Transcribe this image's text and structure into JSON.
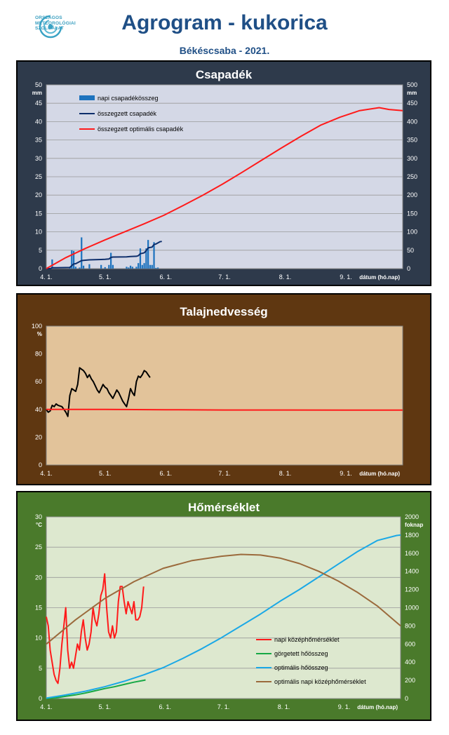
{
  "header": {
    "logo_lines": [
      "ORSZÁGOS",
      "METEOROLÓGIAI",
      "SZOLGÁLAT"
    ],
    "title": "Agrogram - kukorica",
    "subtitle": "Békéscsaba - 2021."
  },
  "colors": {
    "title": "#1f4f86",
    "panel1_bg": "#2e3a4b",
    "panel1_plot": "#d4d8e6",
    "panel2_bg": "#5f3711",
    "panel2_plot": "#e2c39a",
    "panel3_bg": "#4a7a2b",
    "panel3_plot": "#dde8cf"
  },
  "chart_data": [
    {
      "type": "bar",
      "title": "Csapadék",
      "xlabel": "dátum (hó.nap)",
      "x_ticks": [
        "4. 1.",
        "5. 1.",
        "6. 1.",
        "7. 1.",
        "8. 1.",
        "9. 1."
      ],
      "x_tick_days": [
        0,
        30,
        61,
        91,
        122,
        153
      ],
      "x_range_days": [
        0,
        182
      ],
      "y_left": {
        "unit": "mm",
        "range": [
          0,
          50
        ],
        "ticks": [
          0,
          5,
          10,
          15,
          20,
          25,
          30,
          35,
          40,
          45,
          50
        ]
      },
      "y_right": {
        "unit": "mm",
        "range": [
          0,
          500
        ],
        "ticks": [
          0,
          50,
          100,
          150,
          200,
          250,
          300,
          350,
          400,
          450,
          500
        ]
      },
      "grid": true,
      "legend_position": "top-left",
      "series": [
        {
          "name": "napi csapadékösszeg",
          "kind": "bar",
          "axis": "left",
          "color": "#1e73be",
          "points": [
            [
              3,
              2.5
            ],
            [
              12,
              0.5
            ],
            [
              13,
              5.0
            ],
            [
              14,
              4.8
            ],
            [
              15,
              0.5
            ],
            [
              17,
              0.3
            ],
            [
              18,
              8.5
            ],
            [
              19,
              0.8
            ],
            [
              22,
              1.2
            ],
            [
              28,
              1.0
            ],
            [
              30,
              0.4
            ],
            [
              32,
              1.0
            ],
            [
              33,
              4.3
            ],
            [
              34,
              1.0
            ],
            [
              41,
              0.5
            ],
            [
              42,
              0.3
            ],
            [
              43,
              0.8
            ],
            [
              44,
              0.5
            ],
            [
              46,
              0.5
            ],
            [
              47,
              1.5
            ],
            [
              48,
              5.5
            ],
            [
              49,
              1.0
            ],
            [
              50,
              1.5
            ],
            [
              51,
              5.5
            ],
            [
              52,
              7.8
            ],
            [
              53,
              1.0
            ],
            [
              54,
              1.0
            ],
            [
              55,
              7.2
            ],
            [
              56,
              0.2
            ],
            [
              57,
              0.3
            ]
          ]
        },
        {
          "name": "összegzett csapadék",
          "kind": "line",
          "axis": "right",
          "color": "#0d2e6b",
          "points": [
            [
              0,
              0
            ],
            [
              2,
              0
            ],
            [
              3,
              2.5
            ],
            [
              5,
              2.5
            ],
            [
              12,
              3
            ],
            [
              13,
              8
            ],
            [
              14,
              12.8
            ],
            [
              15,
              13.3
            ],
            [
              18,
              21.8
            ],
            [
              19,
              22.6
            ],
            [
              22,
              23.8
            ],
            [
              28,
              24.8
            ],
            [
              30,
              25.2
            ],
            [
              32,
              26.2
            ],
            [
              33,
              30.5
            ],
            [
              34,
              31.5
            ],
            [
              41,
              32
            ],
            [
              43,
              33.1
            ],
            [
              46,
              33.6
            ],
            [
              47,
              35.1
            ],
            [
              48,
              40.6
            ],
            [
              49,
              41.6
            ],
            [
              50,
              43.1
            ],
            [
              51,
              48.6
            ],
            [
              52,
              56.4
            ],
            [
              53,
              57.4
            ],
            [
              54,
              58.4
            ],
            [
              55,
              65.6
            ],
            [
              56,
              67
            ],
            [
              58,
              73
            ],
            [
              59,
              74
            ]
          ]
        },
        {
          "name": "összegzett optimális  csapadék",
          "kind": "line",
          "axis": "right",
          "color": "#ff1a1a",
          "points": [
            [
              0,
              0
            ],
            [
              10,
              30
            ],
            [
              20,
              55
            ],
            [
              30,
              78
            ],
            [
              40,
              100
            ],
            [
              50,
              122
            ],
            [
              60,
              145
            ],
            [
              70,
              172
            ],
            [
              80,
              200
            ],
            [
              90,
              230
            ],
            [
              100,
              262
            ],
            [
              110,
              295
            ],
            [
              120,
              328
            ],
            [
              130,
              360
            ],
            [
              140,
              390
            ],
            [
              150,
              412
            ],
            [
              160,
              430
            ],
            [
              170,
              438
            ],
            [
              175,
              433
            ],
            [
              182,
              430
            ]
          ]
        }
      ]
    },
    {
      "type": "line",
      "title": "Talajnedvesség",
      "xlabel": "dátum (hó.nap)",
      "x_ticks": [
        "4. 1.",
        "5. 1.",
        "6. 1.",
        "7. 1.",
        "8. 1.",
        "9. 1."
      ],
      "x_tick_days": [
        0,
        30,
        61,
        91,
        122,
        153
      ],
      "x_range_days": [
        0,
        182
      ],
      "y": {
        "unit": "%",
        "range": [
          0,
          100
        ],
        "ticks": [
          0,
          20,
          40,
          60,
          80,
          100
        ]
      },
      "grid": false,
      "series": [
        {
          "name": "",
          "color": "#000000",
          "points": [
            [
              0,
              40
            ],
            [
              1,
              38
            ],
            [
              2,
              39
            ],
            [
              3,
              43
            ],
            [
              4,
              42
            ],
            [
              5,
              44
            ],
            [
              6,
              43
            ],
            [
              8,
              42
            ],
            [
              10,
              38
            ],
            [
              11,
              35
            ],
            [
              12,
              50
            ],
            [
              13,
              55
            ],
            [
              14,
              54
            ],
            [
              15,
              53
            ],
            [
              16,
              58
            ],
            [
              17,
              70
            ],
            [
              18,
              69
            ],
            [
              19,
              68
            ],
            [
              20,
              66
            ],
            [
              21,
              63
            ],
            [
              22,
              65
            ],
            [
              23,
              62
            ],
            [
              24,
              60
            ],
            [
              25,
              57
            ],
            [
              26,
              54
            ],
            [
              27,
              52
            ],
            [
              28,
              55
            ],
            [
              29,
              58
            ],
            [
              30,
              56
            ],
            [
              31,
              55
            ],
            [
              32,
              52
            ],
            [
              33,
              50
            ],
            [
              34,
              48
            ],
            [
              35,
              51
            ],
            [
              36,
              54
            ],
            [
              37,
              52
            ],
            [
              38,
              49
            ],
            [
              39,
              46
            ],
            [
              40,
              44
            ],
            [
              41,
              42
            ],
            [
              42,
              48
            ],
            [
              43,
              55
            ],
            [
              44,
              52
            ],
            [
              45,
              50
            ],
            [
              46,
              60
            ],
            [
              47,
              64
            ],
            [
              48,
              63
            ],
            [
              49,
              65
            ],
            [
              50,
              68
            ],
            [
              51,
              67
            ],
            [
              52,
              65
            ],
            [
              53,
              63
            ]
          ]
        },
        {
          "name": "",
          "color": "#ff1a1a",
          "points": [
            [
              0,
              40
            ],
            [
              30,
              40
            ],
            [
              61,
              39.8
            ],
            [
              91,
              39.6
            ],
            [
              122,
              39.6
            ],
            [
              153,
              39.5
            ],
            [
              182,
              39.5
            ]
          ]
        }
      ]
    },
    {
      "type": "line",
      "title": "Hőmérséklet",
      "xlabel": "dátum (hó.nap)",
      "x_ticks": [
        "4. 1.",
        "5. 1.",
        "6. 1.",
        "7. 1.",
        "8. 1.",
        "9. 1."
      ],
      "x_tick_days": [
        0,
        30,
        61,
        91,
        122,
        153
      ],
      "x_range_days": [
        0,
        182
      ],
      "y_left": {
        "unit": "°C",
        "range": [
          0,
          30
        ],
        "ticks": [
          0,
          5,
          10,
          15,
          20,
          25,
          30
        ]
      },
      "y_right": {
        "unit": "foknap",
        "range": [
          0,
          2000
        ],
        "ticks": [
          0,
          200,
          400,
          600,
          800,
          1000,
          1200,
          1400,
          1600,
          1800,
          2000
        ]
      },
      "grid": true,
      "legend_position": "bottom-right",
      "series": [
        {
          "name": "napi középhőmérséklet",
          "axis": "left",
          "color": "#ff1a1a",
          "points": [
            [
              0,
              13.5
            ],
            [
              1,
              12
            ],
            [
              2,
              8
            ],
            [
              3,
              6
            ],
            [
              4,
              4
            ],
            [
              5,
              3
            ],
            [
              6,
              2.5
            ],
            [
              7,
              5
            ],
            [
              8,
              9
            ],
            [
              9,
              12
            ],
            [
              10,
              15
            ],
            [
              11,
              8
            ],
            [
              12,
              5
            ],
            [
              13,
              6
            ],
            [
              14,
              5
            ],
            [
              15,
              7
            ],
            [
              16,
              9
            ],
            [
              17,
              8
            ],
            [
              18,
              11
            ],
            [
              19,
              13
            ],
            [
              20,
              10
            ],
            [
              21,
              8
            ],
            [
              22,
              9
            ],
            [
              23,
              11
            ],
            [
              24,
              15
            ],
            [
              25,
              13
            ],
            [
              26,
              12
            ],
            [
              27,
              14
            ],
            [
              28,
              17
            ],
            [
              29,
              18
            ],
            [
              30,
              20.6
            ],
            [
              31,
              15
            ],
            [
              32,
              11
            ],
            [
              33,
              10
            ],
            [
              34,
              12
            ],
            [
              35,
              10
            ],
            [
              36,
              11
            ],
            [
              37,
              16
            ],
            [
              38,
              18.5
            ],
            [
              39,
              18.5
            ],
            [
              40,
              16
            ],
            [
              41,
              14
            ],
            [
              42,
              16
            ],
            [
              43,
              15
            ],
            [
              44,
              14
            ],
            [
              45,
              16
            ],
            [
              46,
              13
            ],
            [
              47,
              13
            ],
            [
              48,
              13.5
            ],
            [
              49,
              15
            ],
            [
              50,
              18.5
            ]
          ]
        },
        {
          "name": "görgetett hőösszeg",
          "axis": "right",
          "color": "#16a845",
          "points": [
            [
              0,
              0
            ],
            [
              5,
              8
            ],
            [
              10,
              25
            ],
            [
              15,
              40
            ],
            [
              20,
              60
            ],
            [
              25,
              85
            ],
            [
              30,
              110
            ],
            [
              35,
              130
            ],
            [
              40,
              155
            ],
            [
              45,
              180
            ],
            [
              50,
              200
            ],
            [
              51,
              205
            ]
          ]
        },
        {
          "name": "optimális hőösszeg",
          "axis": "right",
          "color": "#1aa8e6",
          "points": [
            [
              0,
              5
            ],
            [
              10,
              40
            ],
            [
              20,
              80
            ],
            [
              30,
              130
            ],
            [
              40,
              190
            ],
            [
              50,
              260
            ],
            [
              60,
              340
            ],
            [
              70,
              440
            ],
            [
              80,
              550
            ],
            [
              90,
              670
            ],
            [
              100,
              800
            ],
            [
              110,
              930
            ],
            [
              120,
              1070
            ],
            [
              130,
              1200
            ],
            [
              140,
              1340
            ],
            [
              150,
              1480
            ],
            [
              160,
              1620
            ],
            [
              170,
              1740
            ],
            [
              180,
              1795
            ],
            [
              182,
              1800
            ]
          ]
        },
        {
          "name": "optimális napi középhőmérséklet",
          "axis": "left",
          "color": "#9b6a3c",
          "points": [
            [
              0,
              9
            ],
            [
              15,
              13
            ],
            [
              30,
              16.5
            ],
            [
              45,
              19.3
            ],
            [
              60,
              21.5
            ],
            [
              75,
              22.8
            ],
            [
              90,
              23.5
            ],
            [
              100,
              23.8
            ],
            [
              110,
              23.7
            ],
            [
              120,
              23.2
            ],
            [
              130,
              22.3
            ],
            [
              140,
              21
            ],
            [
              150,
              19.4
            ],
            [
              160,
              17.5
            ],
            [
              170,
              15.3
            ],
            [
              182,
              12
            ]
          ]
        }
      ]
    }
  ]
}
